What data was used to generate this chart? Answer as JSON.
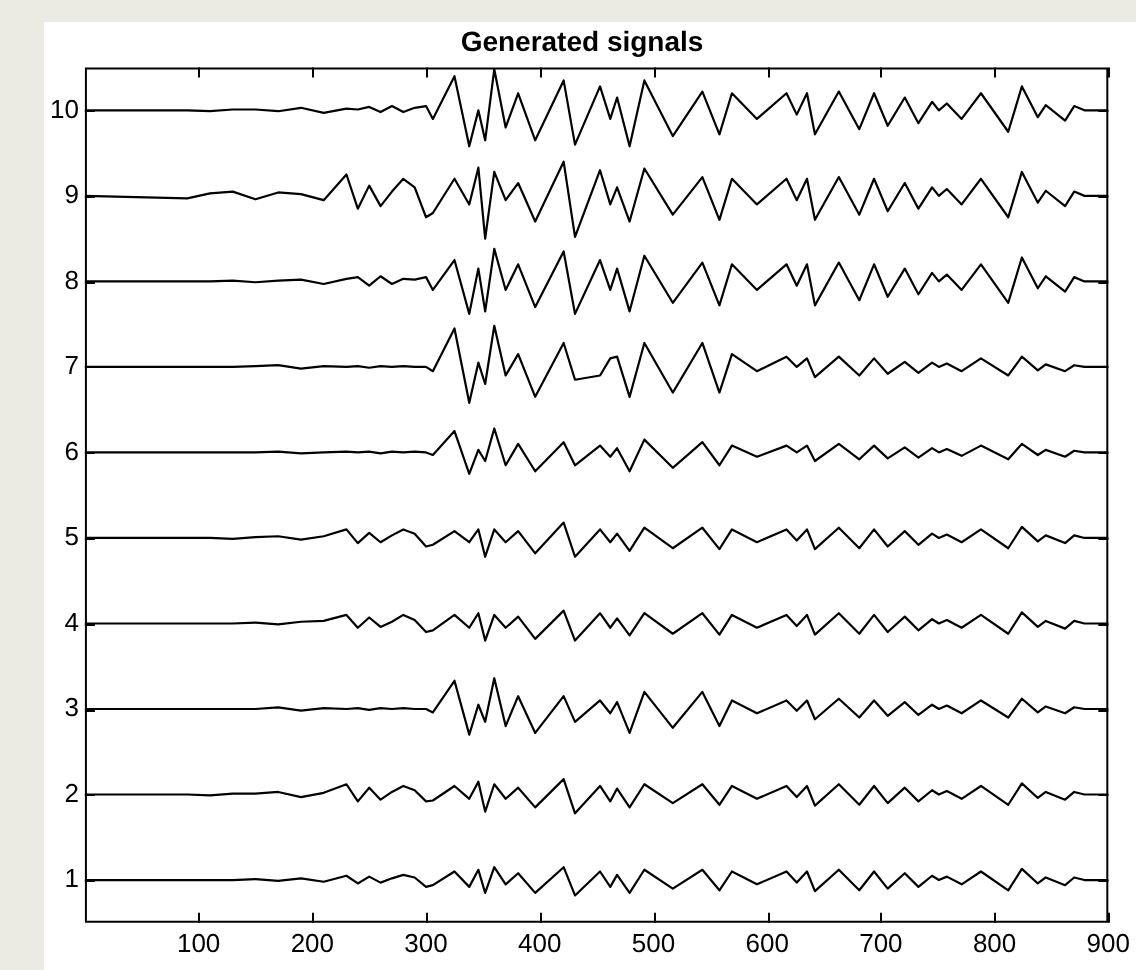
{
  "chart_data": {
    "type": "line",
    "title": "Generated signals",
    "x": [
      0,
      90,
      110,
      130,
      150,
      170,
      190,
      210,
      230,
      240,
      250,
      260,
      270,
      280,
      290,
      300,
      306,
      325,
      338,
      346,
      352,
      360,
      370,
      381,
      396,
      421,
      431,
      453,
      462,
      468,
      479,
      492,
      517,
      543,
      558,
      569,
      591,
      617,
      626,
      635,
      642,
      663,
      681,
      694,
      706,
      721,
      733,
      745,
      751,
      758,
      771,
      788,
      812,
      824,
      838,
      845,
      862,
      870,
      879,
      900
    ],
    "series": [
      {
        "color": "#000000",
        "values": [
          10,
          10,
          9.99,
          10.01,
          10.01,
          9.99,
          10.03,
          9.97,
          10.02,
          10.01,
          10.04,
          9.98,
          10.05,
          9.98,
          10.03,
          10.05,
          9.9,
          10.4,
          9.58,
          10,
          9.65,
          10.48,
          9.8,
          10.2,
          9.65,
          10.35,
          9.6,
          10.28,
          9.9,
          10.15,
          9.58,
          10.35,
          9.7,
          10.22,
          9.72,
          10.2,
          9.9,
          10.2,
          9.95,
          10.2,
          9.72,
          10.22,
          9.78,
          10.2,
          9.82,
          10.15,
          9.85,
          10.1,
          10,
          10.08,
          9.9,
          10.2,
          9.75,
          10.28,
          9.92,
          10.06,
          9.88,
          10.05,
          10,
          10
        ]
      },
      {
        "color": "#000000",
        "values": [
          9,
          8.97,
          9.03,
          9.05,
          8.96,
          9.04,
          9.02,
          8.95,
          9.25,
          8.85,
          9.12,
          8.88,
          9.05,
          9.2,
          9.1,
          8.75,
          8.8,
          9.2,
          8.9,
          9.33,
          8.5,
          9.28,
          8.95,
          9.15,
          8.7,
          9.4,
          8.52,
          9.3,
          8.9,
          9.1,
          8.7,
          9.32,
          8.78,
          9.22,
          8.72,
          9.2,
          8.9,
          9.2,
          8.95,
          9.2,
          8.72,
          9.22,
          8.78,
          9.2,
          8.82,
          9.15,
          8.85,
          9.1,
          9,
          9.08,
          8.9,
          9.2,
          8.75,
          9.28,
          8.92,
          9.06,
          8.88,
          9.05,
          9,
          9
        ]
      },
      {
        "color": "#000000",
        "values": [
          8,
          8,
          8,
          8.01,
          7.99,
          8.01,
          8.02,
          7.97,
          8.03,
          8.05,
          7.95,
          8.06,
          7.97,
          8.03,
          8.02,
          8.05,
          7.9,
          8.25,
          7.62,
          8.15,
          7.65,
          8.38,
          7.9,
          8.2,
          7.7,
          8.35,
          7.62,
          8.25,
          7.9,
          8.15,
          7.65,
          8.3,
          7.75,
          8.22,
          7.72,
          8.2,
          7.9,
          8.2,
          7.95,
          8.2,
          7.72,
          8.22,
          7.78,
          8.2,
          7.82,
          8.15,
          7.85,
          8.1,
          8,
          8.08,
          7.9,
          8.2,
          7.75,
          8.28,
          7.92,
          8.06,
          7.88,
          8.05,
          8,
          8
        ]
      },
      {
        "color": "#000000",
        "values": [
          7,
          7,
          7,
          7,
          7.01,
          7.02,
          6.98,
          7.01,
          7,
          7.01,
          6.99,
          7.01,
          7,
          7.01,
          7,
          7,
          6.95,
          7.45,
          6.58,
          7.05,
          6.8,
          7.48,
          6.9,
          7.15,
          6.65,
          7.28,
          6.85,
          6.9,
          7.1,
          7.12,
          6.65,
          7.28,
          6.7,
          7.28,
          6.7,
          7.15,
          6.95,
          7.12,
          7,
          7.1,
          6.88,
          7.12,
          6.9,
          7.1,
          6.92,
          7.06,
          6.93,
          7.05,
          7,
          7.04,
          6.95,
          7.1,
          6.9,
          7.12,
          6.96,
          7.03,
          6.95,
          7.02,
          7,
          7
        ]
      },
      {
        "color": "#000000",
        "values": [
          6,
          6,
          6,
          6,
          6,
          6.01,
          5.99,
          6,
          6.01,
          6,
          6.01,
          5.99,
          6.01,
          6,
          6.01,
          6,
          5.97,
          6.25,
          5.75,
          6.03,
          5.9,
          6.28,
          5.85,
          6.1,
          5.78,
          6.12,
          5.85,
          6.08,
          5.95,
          6.05,
          5.78,
          6.15,
          5.82,
          6.12,
          5.85,
          6.08,
          5.95,
          6.08,
          6,
          6.08,
          5.9,
          6.1,
          5.92,
          6.08,
          5.93,
          6.06,
          5.94,
          6.05,
          6,
          6.04,
          5.96,
          6.08,
          5.92,
          6.1,
          5.97,
          6.03,
          5.95,
          6.02,
          6,
          6
        ]
      },
      {
        "color": "#000000",
        "values": [
          5,
          5,
          5,
          4.99,
          5.01,
          5.02,
          4.98,
          5.02,
          5.1,
          4.94,
          5.06,
          4.95,
          5.03,
          5.1,
          5.05,
          4.9,
          4.92,
          5.08,
          4.95,
          5.1,
          4.78,
          5.1,
          4.95,
          5.08,
          4.82,
          5.18,
          4.78,
          5.1,
          4.95,
          5.05,
          4.85,
          5.12,
          4.88,
          5.12,
          4.87,
          5.1,
          4.95,
          5.1,
          4.97,
          5.1,
          4.87,
          5.12,
          4.88,
          5.1,
          4.9,
          5.08,
          4.92,
          5.05,
          5,
          5.04,
          4.95,
          5.1,
          4.88,
          5.13,
          4.96,
          5.03,
          4.94,
          5.03,
          5,
          5
        ]
      },
      {
        "color": "#000000",
        "values": [
          4,
          4,
          4,
          4,
          4.01,
          3.99,
          4.02,
          4.03,
          4.1,
          3.95,
          4.07,
          3.96,
          4.02,
          4.1,
          4.04,
          3.9,
          3.92,
          4.1,
          3.95,
          4.12,
          3.8,
          4.1,
          3.95,
          4.08,
          3.82,
          4.15,
          3.8,
          4.12,
          3.95,
          4.06,
          3.86,
          4.12,
          3.88,
          4.12,
          3.87,
          4.1,
          3.95,
          4.1,
          3.97,
          4.1,
          3.87,
          4.12,
          3.88,
          4.1,
          3.9,
          4.08,
          3.92,
          4.05,
          4,
          4.04,
          3.95,
          4.1,
          3.88,
          4.13,
          3.96,
          4.03,
          3.94,
          4.03,
          4,
          4
        ]
      },
      {
        "color": "#000000",
        "values": [
          3,
          3,
          3,
          3,
          3,
          3.02,
          2.98,
          3.01,
          3,
          3.01,
          2.99,
          3.01,
          3,
          3.01,
          3,
          3,
          2.96,
          3.33,
          2.7,
          3.05,
          2.85,
          3.36,
          2.8,
          3.15,
          2.72,
          3.15,
          2.85,
          3.1,
          2.95,
          3.08,
          2.72,
          3.2,
          2.78,
          3.2,
          2.8,
          3.1,
          2.95,
          3.1,
          2.98,
          3.1,
          2.88,
          3.12,
          2.9,
          3.1,
          2.92,
          3.08,
          2.93,
          3.05,
          3,
          3.04,
          2.95,
          3.1,
          2.9,
          3.12,
          2.96,
          3.03,
          2.95,
          3.02,
          3,
          3
        ]
      },
      {
        "color": "#000000",
        "values": [
          2,
          2,
          1.99,
          2.01,
          2.01,
          2.03,
          1.97,
          2.02,
          2.12,
          1.92,
          2.08,
          1.94,
          2.03,
          2.1,
          2.05,
          1.92,
          1.93,
          2.1,
          1.95,
          2.15,
          1.8,
          2.12,
          1.95,
          2.08,
          1.85,
          2.18,
          1.78,
          2.1,
          1.92,
          2.07,
          1.85,
          2.12,
          1.9,
          2.12,
          1.88,
          2.1,
          1.95,
          2.1,
          1.97,
          2.1,
          1.87,
          2.12,
          1.88,
          2.1,
          1.9,
          2.08,
          1.92,
          2.05,
          2,
          2.04,
          1.95,
          2.1,
          1.88,
          2.13,
          1.96,
          2.03,
          1.94,
          2.03,
          2,
          2
        ]
      },
      {
        "color": "#000000",
        "values": [
          1,
          1,
          1,
          1,
          1.01,
          0.99,
          1.02,
          0.98,
          1.05,
          0.96,
          1.04,
          0.97,
          1.02,
          1.06,
          1.03,
          0.92,
          0.94,
          1.1,
          0.92,
          1.12,
          0.85,
          1.15,
          0.95,
          1.08,
          0.85,
          1.15,
          0.82,
          1.1,
          0.92,
          1.06,
          0.85,
          1.12,
          0.9,
          1.12,
          0.88,
          1.1,
          0.95,
          1.1,
          0.97,
          1.1,
          0.87,
          1.12,
          0.88,
          1.1,
          0.9,
          1.08,
          0.92,
          1.05,
          1,
          1.04,
          0.95,
          1.1,
          0.88,
          1.13,
          0.96,
          1.03,
          0.94,
          1.03,
          1,
          1
        ]
      }
    ],
    "xlim": [
      0,
      900
    ],
    "xticks": [
      100,
      200,
      300,
      400,
      500,
      600,
      700,
      800,
      900
    ],
    "ylim": [
      0.5,
      10.5
    ],
    "yticks": [
      1,
      2,
      3,
      4,
      5,
      6,
      7,
      8,
      9,
      10
    ],
    "grid": false,
    "legend": false,
    "marker": "none",
    "line_style": "solid"
  }
}
